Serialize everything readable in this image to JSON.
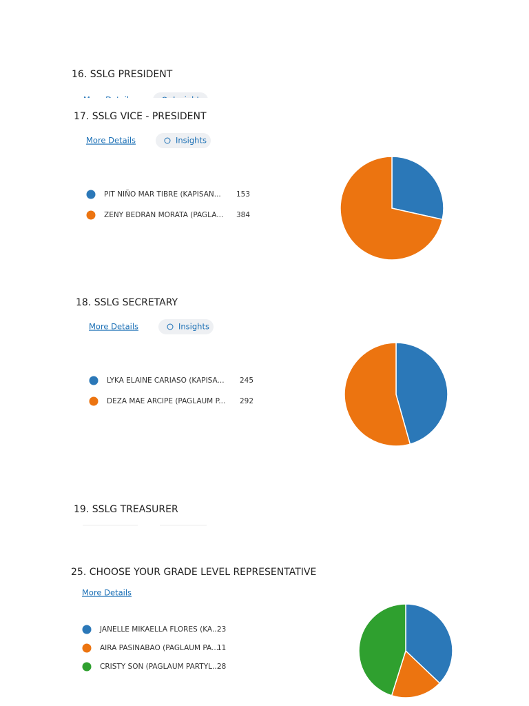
{
  "questions": [
    {
      "title": "16. SSLG PRESIDENT",
      "links": [
        "More Details",
        "Insights"
      ]
    },
    {
      "title": "17. SSLG VICE - PRESIDENT",
      "links": [
        "More Details",
        "Insights"
      ],
      "chart": {
        "type": "pie",
        "categories": [
          "PIT NIÑO MAR TIBRE (KAPISAN...",
          "ZENY BEDRAN MORATA (PAGLA..."
        ],
        "values": [
          153,
          384
        ],
        "colors": [
          "#2b78b8",
          "#ec7410"
        ]
      }
    },
    {
      "title": "18. SSLG SECRETARY",
      "links": [
        "More Details",
        "Insights"
      ],
      "chart": {
        "type": "pie",
        "categories": [
          "LYKA ELAINE CARIASO (KAPISA...",
          "DEZA MAE ARCIPE (PAGLAUM P..."
        ],
        "values": [
          245,
          292
        ],
        "colors": [
          "#2b78b8",
          "#ec7410"
        ]
      }
    },
    {
      "title": "19. SSLG TREASURER",
      "links": []
    },
    {
      "title": "25. CHOOSE YOUR GRADE LEVEL REPRESENTATIVE",
      "links": [
        "More Details"
      ],
      "chart": {
        "type": "pie",
        "categories": [
          "JANELLE MIKAELLA FLORES (KA...",
          "AIRA PASINABAO (PAGLAUM PA...",
          "CRISTY SON (PAGLAUM PARTYL..."
        ],
        "values": [
          23,
          11,
          28
        ],
        "colors": [
          "#2b78b8",
          "#ec7410",
          "#2fa02f"
        ]
      }
    }
  ]
}
